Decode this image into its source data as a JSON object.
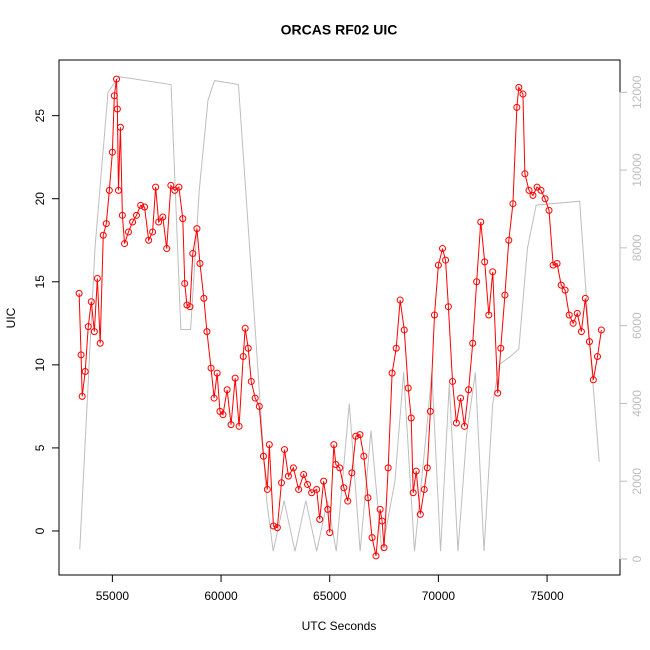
{
  "chart_data": {
    "type": "line",
    "title": "ORCAS RF02 UIC",
    "x_label": "UTC Seconds",
    "y_label": "UIC",
    "xlim": [
      52544,
      78356
    ],
    "ylim": [
      -2.65,
      28.35
    ],
    "y2lim": [
      -411,
      12830
    ],
    "xticks": [
      55000,
      60000,
      65000,
      70000,
      75000
    ],
    "yticks": [
      0,
      5,
      10,
      15,
      20,
      25
    ],
    "y2ticks": [
      0,
      2000,
      4000,
      6000,
      8000,
      10000,
      12000
    ],
    "series": [
      {
        "color": "#ff0000",
        "marker": "circle",
        "x": [
          53470,
          53560,
          53610,
          53750,
          53890,
          54030,
          54170,
          54310,
          54440,
          54580,
          54720,
          54860,
          55000,
          55090,
          55190,
          55230,
          55280,
          55370,
          55460,
          55560,
          55740,
          55930,
          56110,
          56300,
          56480,
          56670,
          56850,
          56990,
          57130,
          57320,
          57500,
          57690,
          57870,
          58060,
          58240,
          58330,
          58430,
          58570,
          58700,
          58890,
          59030,
          59210,
          59350,
          59540,
          59680,
          59820,
          59950,
          60090,
          60280,
          60460,
          60650,
          60830,
          61020,
          61110,
          61250,
          61390,
          61570,
          61760,
          61950,
          62130,
          62220,
          62410,
          62590,
          62780,
          62920,
          63100,
          63330,
          63570,
          63800,
          63980,
          64170,
          64400,
          64540,
          64720,
          64910,
          65000,
          65190,
          65280,
          65460,
          65650,
          65830,
          66020,
          66200,
          66390,
          66570,
          66760,
          66950,
          67130,
          67320,
          67410,
          67500,
          67690,
          67870,
          68060,
          68240,
          68430,
          68610,
          68750,
          68840,
          68980,
          69170,
          69350,
          69490,
          69630,
          69820,
          70000,
          70190,
          70330,
          70460,
          70650,
          70830,
          71020,
          71200,
          71390,
          71580,
          71760,
          71950,
          72130,
          72320,
          72500,
          72730,
          72870,
          73060,
          73240,
          73430,
          73610,
          73700,
          73890,
          73980,
          74170,
          74350,
          74540,
          74720,
          74910,
          75090,
          75280,
          75460,
          75650,
          75830,
          76020,
          76200,
          76390,
          76580,
          76760,
          76950,
          77130,
          77320,
          77500
        ],
        "values": [
          14.3,
          10.6,
          8.1,
          9.6,
          12.3,
          13.8,
          12.0,
          15.2,
          11.3,
          17.8,
          18.5,
          20.5,
          22.8,
          26.2,
          27.2,
          25.4,
          20.5,
          24.3,
          19.0,
          17.3,
          18.0,
          18.6,
          19.0,
          19.6,
          19.5,
          17.5,
          18.0,
          20.7,
          18.6,
          18.9,
          17.0,
          20.8,
          20.5,
          20.7,
          18.8,
          14.9,
          13.6,
          13.5,
          16.7,
          18.2,
          16.1,
          14.0,
          12.0,
          9.8,
          8.0,
          9.5,
          7.2,
          7.0,
          8.5,
          6.4,
          9.2,
          6.3,
          10.5,
          12.2,
          11.0,
          9.0,
          8.0,
          7.5,
          4.5,
          2.5,
          5.2,
          0.3,
          0.2,
          2.9,
          4.9,
          3.3,
          3.8,
          2.5,
          3.4,
          2.8,
          2.3,
          2.5,
          0.7,
          3.0,
          1.3,
          -0.1,
          5.2,
          4.0,
          3.8,
          2.6,
          1.8,
          3.5,
          5.7,
          5.8,
          4.5,
          2.0,
          -0.4,
          -1.5,
          1.3,
          0.6,
          -1.0,
          3.8,
          9.5,
          11.0,
          13.9,
          12.1,
          8.6,
          6.8,
          2.3,
          3.6,
          1.0,
          2.5,
          3.8,
          7.2,
          13.0,
          16.0,
          17.0,
          16.3,
          13.5,
          9.0,
          6.5,
          8.0,
          6.3,
          8.5,
          11.3,
          15.0,
          18.6,
          16.2,
          13.0,
          15.6,
          8.3,
          11.0,
          14.2,
          17.5,
          19.7,
          25.5,
          26.7,
          26.3,
          21.5,
          20.5,
          20.2,
          20.7,
          20.5,
          20.0,
          19.3,
          16.0,
          16.1,
          14.8,
          14.5,
          13.0,
          12.5,
          13.1,
          12.0,
          14.0,
          11.4,
          9.1,
          10.5,
          12.1
        ]
      },
      {
        "color": "#bebebe",
        "axis": "y2",
        "x": [
          53500,
          54200,
          54800,
          55300,
          57700,
          58150,
          58600,
          59000,
          59400,
          59700,
          60800,
          61500,
          62100,
          62400,
          62900,
          63400,
          63900,
          64400,
          64900,
          65300,
          65900,
          66400,
          66900,
          67400,
          68000,
          68400,
          68900,
          69400,
          69700,
          70100,
          70500,
          70900,
          71300,
          71700,
          72100,
          72500,
          72800,
          73300,
          73700,
          74100,
          74500,
          76500,
          76900,
          77400
        ],
        "values": [
          250,
          8000,
          12000,
          12400,
          12200,
          5900,
          5900,
          9500,
          11800,
          12300,
          12200,
          6500,
          1500,
          200,
          1500,
          200,
          1500,
          200,
          1500,
          200,
          4000,
          200,
          3300,
          200,
          2000,
          4800,
          200,
          3000,
          4800,
          200,
          4500,
          200,
          3200,
          4800,
          200,
          4000,
          5000,
          5200,
          5400,
          8000,
          9100,
          9200,
          6000,
          2500
        ]
      }
    ]
  }
}
